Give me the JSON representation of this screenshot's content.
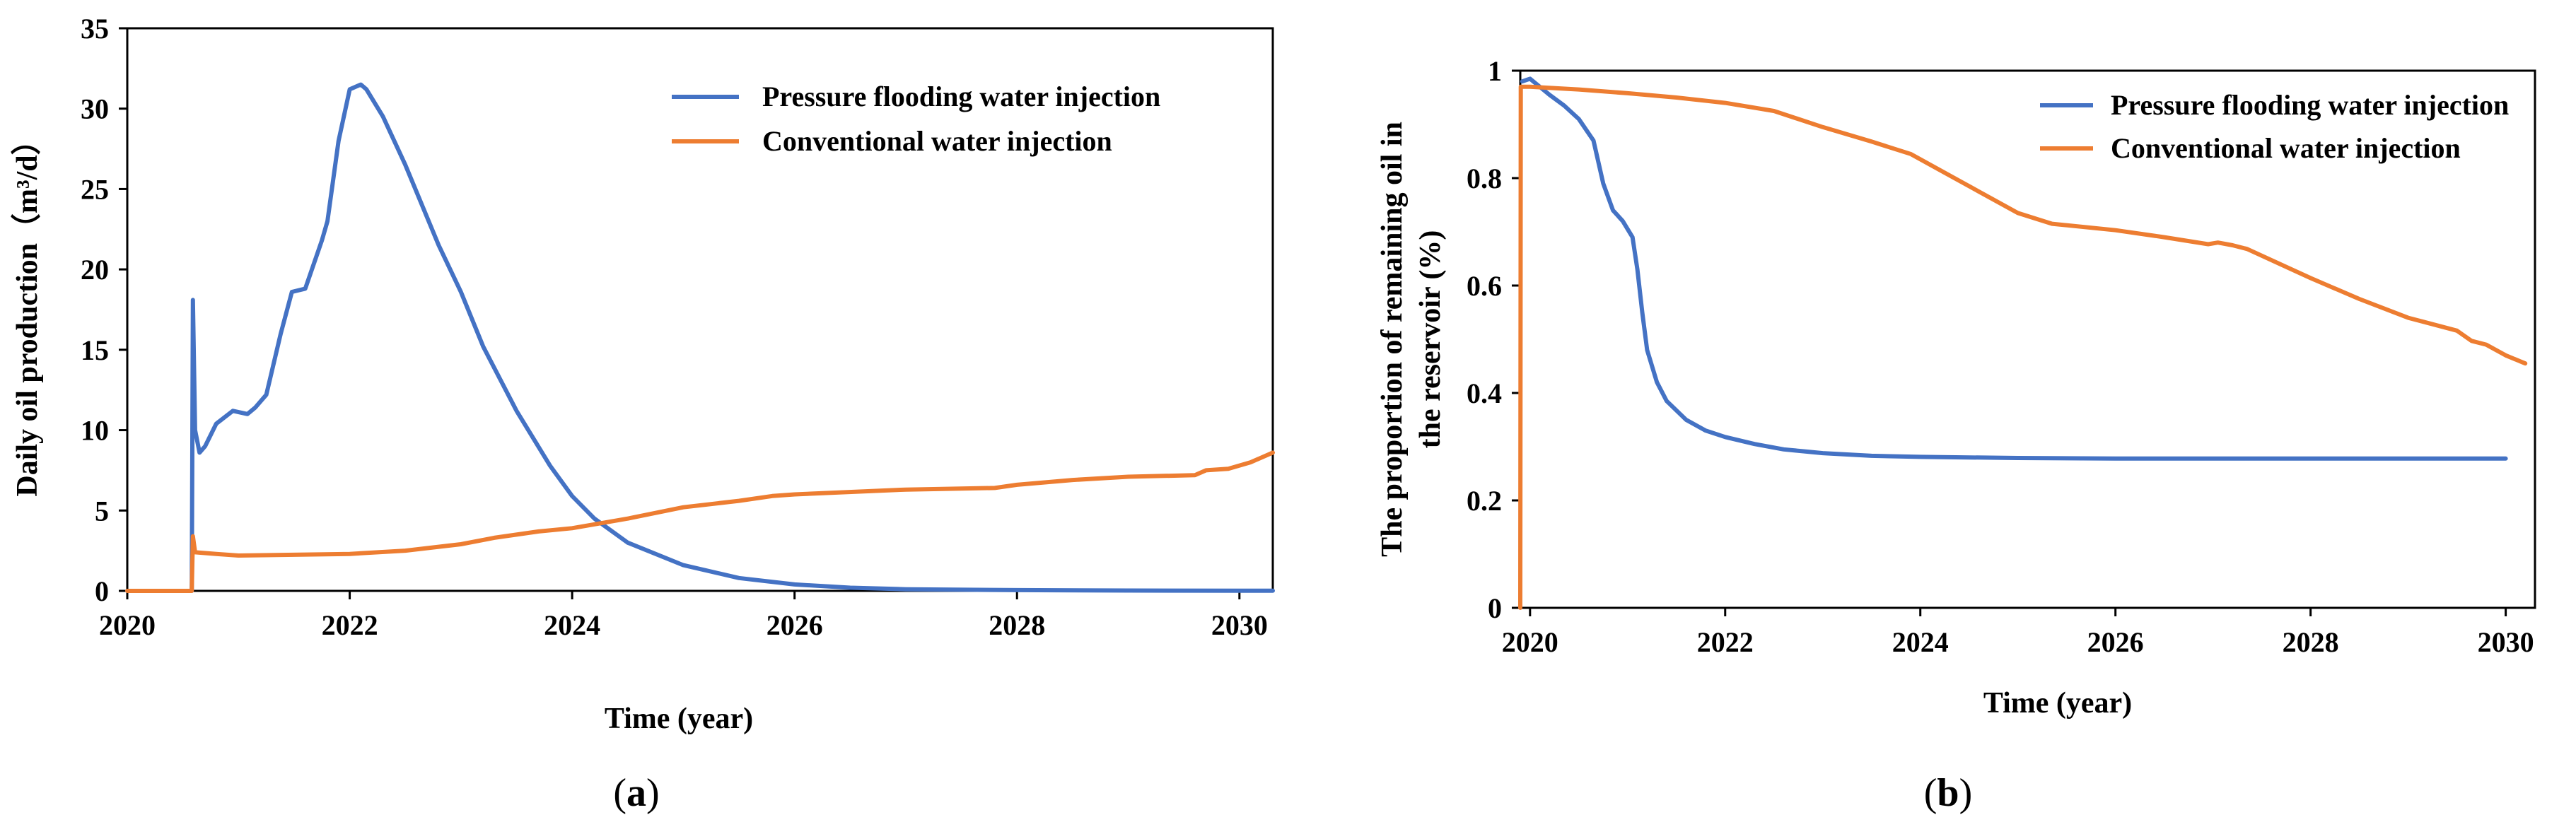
{
  "chart_data": [
    {
      "type": "line",
      "panel_label": "a",
      "title": "",
      "xlabel": "Time (year)",
      "ylabel": "Daily oil production（m³/d）",
      "xlim": [
        2020,
        2030.3
      ],
      "ylim": [
        0,
        35
      ],
      "xticks": [
        2020,
        2022,
        2024,
        2026,
        2028,
        2030
      ],
      "yticks": [
        0,
        5,
        10,
        15,
        20,
        25,
        30,
        35
      ],
      "grid": false,
      "legend_position": "top-right",
      "series": [
        {
          "name": "Pressure flooding water injection",
          "color": "#4472C4",
          "x": [
            2020.0,
            2020.58,
            2020.59,
            2020.61,
            2020.65,
            2020.7,
            2020.8,
            2020.95,
            2021.08,
            2021.15,
            2021.25,
            2021.38,
            2021.48,
            2021.6,
            2021.75,
            2021.8,
            2021.9,
            2022.0,
            2022.1,
            2022.15,
            2022.3,
            2022.5,
            2022.8,
            2023.0,
            2023.2,
            2023.5,
            2023.8,
            2024.0,
            2024.2,
            2024.5,
            2025.0,
            2025.5,
            2026.0,
            2026.5,
            2027.0,
            2028.0,
            2029.0,
            2030.0,
            2030.3
          ],
          "y": [
            0,
            0,
            18.1,
            10.0,
            8.6,
            9.0,
            10.4,
            11.2,
            11.0,
            11.4,
            12.2,
            16.0,
            18.6,
            18.8,
            21.8,
            23.0,
            28.0,
            31.2,
            31.5,
            31.2,
            29.5,
            26.5,
            21.5,
            18.6,
            15.2,
            11.2,
            7.8,
            5.9,
            4.5,
            3.0,
            1.6,
            0.8,
            0.4,
            0.2,
            0.1,
            0.05,
            0.02,
            0.01,
            0.01
          ]
        },
        {
          "name": "Conventional water injection",
          "color": "#ED7D31",
          "x": [
            2020.0,
            2020.58,
            2020.59,
            2020.61,
            2020.8,
            2021.0,
            2022.0,
            2022.5,
            2023.0,
            2023.3,
            2023.7,
            2024.0,
            2024.5,
            2025.0,
            2025.5,
            2025.8,
            2026.0,
            2027.0,
            2027.8,
            2028.0,
            2028.5,
            2029.0,
            2029.6,
            2029.7,
            2029.9,
            2030.1,
            2030.3
          ],
          "y": [
            0,
            0,
            3.4,
            2.4,
            2.3,
            2.2,
            2.3,
            2.5,
            2.9,
            3.3,
            3.7,
            3.9,
            4.5,
            5.2,
            5.6,
            5.9,
            6.0,
            6.3,
            6.4,
            6.6,
            6.9,
            7.1,
            7.2,
            7.5,
            7.6,
            8.0,
            8.6
          ]
        }
      ]
    },
    {
      "type": "line",
      "panel_label": "b",
      "title": "",
      "xlabel": "Time (year)",
      "ylabel_lines": [
        "The proportion of remaining oil in",
        "the reservoir (%)"
      ],
      "xlim": [
        2019.9,
        2030.3
      ],
      "ylim": [
        0,
        1.0
      ],
      "xticks": [
        2020,
        2022,
        2024,
        2026,
        2028,
        2030
      ],
      "yticks": [
        0,
        0.2,
        0.4,
        0.6,
        0.8,
        1
      ],
      "ytick_labels": [
        "0",
        "0.2",
        "0.4",
        "0.6",
        "0.8",
        "1"
      ],
      "grid": false,
      "legend_position": "top-right",
      "series": [
        {
          "name": "Pressure flooding water injection",
          "color": "#4472C4",
          "x": [
            2019.92,
            2020.0,
            2020.1,
            2020.2,
            2020.35,
            2020.5,
            2020.65,
            2020.75,
            2020.85,
            2020.95,
            2021.05,
            2021.1,
            2021.15,
            2021.2,
            2021.3,
            2021.4,
            2021.6,
            2021.8,
            2022.0,
            2022.3,
            2022.6,
            2023.0,
            2023.5,
            2024.0,
            2025.0,
            2026.0,
            2027.0,
            2028.0,
            2029.0,
            2030.0
          ],
          "y": [
            0.98,
            0.985,
            0.97,
            0.955,
            0.935,
            0.91,
            0.87,
            0.79,
            0.74,
            0.72,
            0.69,
            0.63,
            0.55,
            0.48,
            0.42,
            0.385,
            0.35,
            0.33,
            0.318,
            0.305,
            0.295,
            0.288,
            0.283,
            0.281,
            0.279,
            0.278,
            0.278,
            0.278,
            0.278,
            0.278
          ]
        },
        {
          "name": "Conventional water injection",
          "color": "#ED7D31",
          "x": [
            2019.9,
            2019.905,
            2020.0,
            2020.5,
            2021.0,
            2021.5,
            2022.0,
            2022.5,
            2023.0,
            2023.5,
            2023.9,
            2024.5,
            2025.0,
            2025.35,
            2026.0,
            2026.5,
            2026.95,
            2027.05,
            2027.2,
            2027.35,
            2028.0,
            2028.5,
            2029.0,
            2029.5,
            2029.65,
            2029.8,
            2030.0,
            2030.2
          ],
          "y": [
            0,
            0.97,
            0.97,
            0.965,
            0.958,
            0.95,
            0.94,
            0.925,
            0.895,
            0.868,
            0.845,
            0.785,
            0.735,
            0.715,
            0.703,
            0.69,
            0.677,
            0.68,
            0.675,
            0.668,
            0.614,
            0.575,
            0.54,
            0.516,
            0.497,
            0.49,
            0.47,
            0.455
          ]
        }
      ]
    }
  ]
}
